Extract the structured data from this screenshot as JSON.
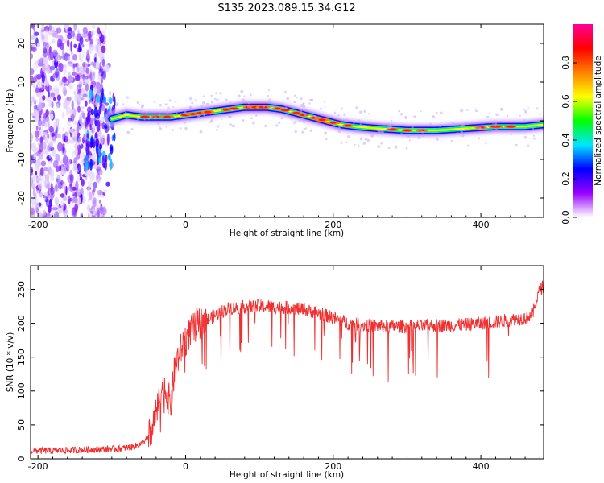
{
  "title": "S135.2023.089.15.34.G12",
  "chart_data": [
    {
      "type": "heatmap",
      "xlabel": "Height of straight line (km)",
      "ylabel": "Frequency (Hz)",
      "xlim": [
        -210,
        485
      ],
      "ylim": [
        -25,
        25
      ],
      "xticks": [
        -200,
        0,
        200,
        400
      ],
      "yticks": [
        -20,
        -10,
        0,
        10,
        20
      ],
      "grid": false,
      "colorbar": {
        "label": "Normalized spectral amplitude",
        "range": [
          0,
          1
        ],
        "ticks": [
          0.0,
          0.2,
          0.4,
          0.6,
          0.8
        ],
        "colormap": [
          "#ffffff",
          "#9900ff",
          "#0000ff",
          "#00e5ff",
          "#00ff00",
          "#ffff00",
          "#ff7f00",
          "#ff0000",
          "#ff0099"
        ]
      },
      "ridge": {
        "x": [
          -100,
          -90,
          -80,
          -60,
          -40,
          -20,
          0,
          40,
          80,
          110,
          130,
          150,
          170,
          190,
          210,
          230,
          260,
          300,
          340,
          380,
          420,
          460,
          485
        ],
        "y": [
          0.5,
          1.0,
          1.5,
          1.0,
          1.0,
          1.0,
          1.5,
          2.5,
          3.5,
          3.5,
          3.0,
          2.0,
          1.0,
          0.0,
          -1.0,
          -1.5,
          -2.0,
          -2.5,
          -2.5,
          -2.0,
          -1.5,
          -1.5,
          -1.0
        ]
      }
    },
    {
      "type": "line",
      "xlabel": "Height of straight line (km)",
      "ylabel": "SNR (10 * v/v)",
      "xlim": [
        -210,
        485
      ],
      "ylim": [
        0,
        285
      ],
      "xticks": [
        -200,
        0,
        200,
        400
      ],
      "yticks": [
        0,
        50,
        100,
        150,
        200,
        250
      ],
      "grid": false,
      "series": [
        {
          "color": "#f03030",
          "x": [
            -210,
            -180,
            -150,
            -120,
            -90,
            -70,
            -60,
            -50,
            -45,
            -40,
            -35,
            -30,
            -25,
            -20,
            -15,
            -10,
            -5,
            0,
            5,
            10,
            15,
            20,
            30,
            40,
            50,
            60,
            80,
            100,
            120,
            140,
            160,
            180,
            200,
            220,
            240,
            260,
            280,
            300,
            320,
            340,
            360,
            380,
            400,
            420,
            440,
            460,
            470,
            480,
            485
          ],
          "y": [
            12,
            12,
            13,
            14,
            15,
            18,
            22,
            32,
            45,
            65,
            90,
            110,
            95,
            80,
            130,
            150,
            165,
            175,
            185,
            190,
            198,
            200,
            205,
            212,
            218,
            222,
            224,
            225,
            224,
            223,
            220,
            215,
            208,
            200,
            197,
            196,
            195,
            195,
            196,
            197,
            197,
            198,
            200,
            202,
            205,
            208,
            213,
            250,
            255
          ]
        }
      ]
    }
  ]
}
